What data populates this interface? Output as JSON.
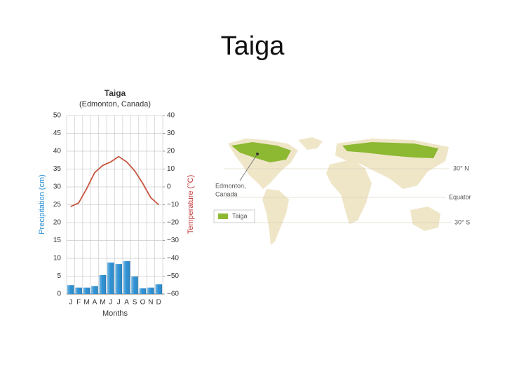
{
  "title": "Taiga",
  "chart_data": {
    "type": "combo",
    "title": "Taiga",
    "subtitle": "(Edmonton, Canada)",
    "categories": [
      "J",
      "F",
      "M",
      "A",
      "M",
      "J",
      "J",
      "A",
      "S",
      "O",
      "N",
      "D"
    ],
    "xlabel": "Months",
    "ylabel": "Precipitation (cm)",
    "y2label": "Temperature (°C)",
    "ylim": [
      0,
      50
    ],
    "yticks": [
      0,
      5,
      10,
      15,
      20,
      25,
      30,
      35,
      40,
      45,
      50
    ],
    "y2lim": [
      -60,
      40
    ],
    "y2ticks": [
      {
        "value": -60,
        "label": "−60"
      },
      {
        "value": -50,
        "label": "−50"
      },
      {
        "value": -40,
        "label": "−40"
      },
      {
        "value": -30,
        "label": "−30"
      },
      {
        "value": -20,
        "label": "−20"
      },
      {
        "value": -10,
        "label": "−10"
      },
      0,
      10,
      20,
      30,
      40
    ],
    "grid": true,
    "series": [
      {
        "type": "bar",
        "color": "#2b8fd2",
        "values": [
          2.5,
          1.8,
          1.8,
          2.2,
          5.3,
          8.8,
          8.4,
          9.2,
          4.9,
          1.6,
          1.8,
          2.7
        ]
      },
      {
        "type": "line",
        "axis": "y2",
        "color": "#c8553f",
        "values": [
          -11,
          -9,
          -1,
          8,
          12,
          14,
          17,
          14,
          9,
          2,
          -6,
          -10
        ]
      }
    ]
  },
  "map": {
    "callout": [
      "Edmonton,",
      "Canada"
    ],
    "latitudes": [
      "30° N",
      "Equator",
      "30° S"
    ],
    "legend": "Taiga"
  }
}
